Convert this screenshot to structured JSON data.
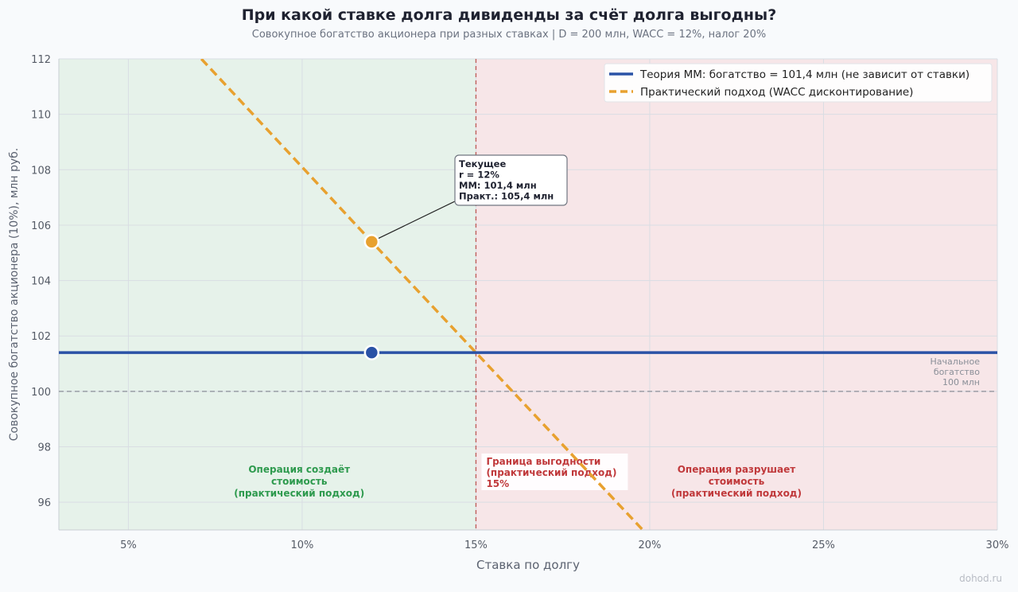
{
  "header": {
    "title": "При какой ставке долга дивиденды за счёт долга выгодны?",
    "subtitle": "Совокупное богатство акционера при разных ставках  |  D = 200 млн, WACC = 12%, налог 20%"
  },
  "watermark": "dohod.ru",
  "chart_data": {
    "type": "line",
    "xlabel": "Ставка по долгу",
    "ylabel": "Совокупное богатство акционера (10%), млн руб.",
    "xlim": [
      3,
      30
    ],
    "ylim": [
      95,
      112
    ],
    "x_ticks": [
      5,
      10,
      15,
      20,
      25,
      30
    ],
    "x_tick_labels": [
      "5%",
      "10%",
      "15%",
      "20%",
      "25%",
      "30%"
    ],
    "y_ticks": [
      96,
      98,
      100,
      102,
      104,
      106,
      108,
      110,
      112
    ],
    "grid": true,
    "legend_position": "top-right",
    "colors": {
      "mm": "#2a52a6",
      "practical": "#e8a12f",
      "baseline": "#8a8f98",
      "boundary": "#c0605d",
      "green_zone": "#e6f2ea",
      "red_zone": "#f7e6e8",
      "green_text": "#2e9a4e",
      "red_text": "#c0393b"
    },
    "series": [
      {
        "name": "Теория ММ: богатство = 101,4 млн (не зависит от ставки)",
        "style": "solid",
        "x": [
          3,
          30
        ],
        "y": [
          101.4,
          101.4
        ]
      },
      {
        "name": "Практический подход (WACC дисконтирование)",
        "style": "dashed",
        "x": [
          7.1,
          12,
          15,
          19.8
        ],
        "y": [
          112,
          105.4,
          101.4,
          95
        ]
      }
    ],
    "baseline": {
      "y": 100,
      "label_lines": [
        "Начальное",
        "богатство",
        "100 млн"
      ]
    },
    "boundary": {
      "x": 15,
      "label_lines": [
        "Граница выгодности",
        "(практический подход)",
        "15%"
      ]
    },
    "points": [
      {
        "series": "mm",
        "x": 12,
        "y": 101.4
      },
      {
        "series": "practical",
        "x": 12,
        "y": 105.4
      }
    ],
    "annotation": {
      "lines": [
        "Текущее",
        "r = 12%",
        "ММ: 101,4 млн",
        "Практ.: 105,4 млн"
      ],
      "points_to": {
        "x": 12,
        "y": 105.4
      }
    },
    "regions": [
      {
        "x_range": [
          3,
          15
        ],
        "label_lines": [
          "Операция создаёт",
          "стоимость",
          "(практический подход)"
        ]
      },
      {
        "x_range": [
          15,
          30
        ],
        "label_lines": [
          "Операция разрушает",
          "стоимость",
          "(практический подход)"
        ]
      }
    ]
  }
}
